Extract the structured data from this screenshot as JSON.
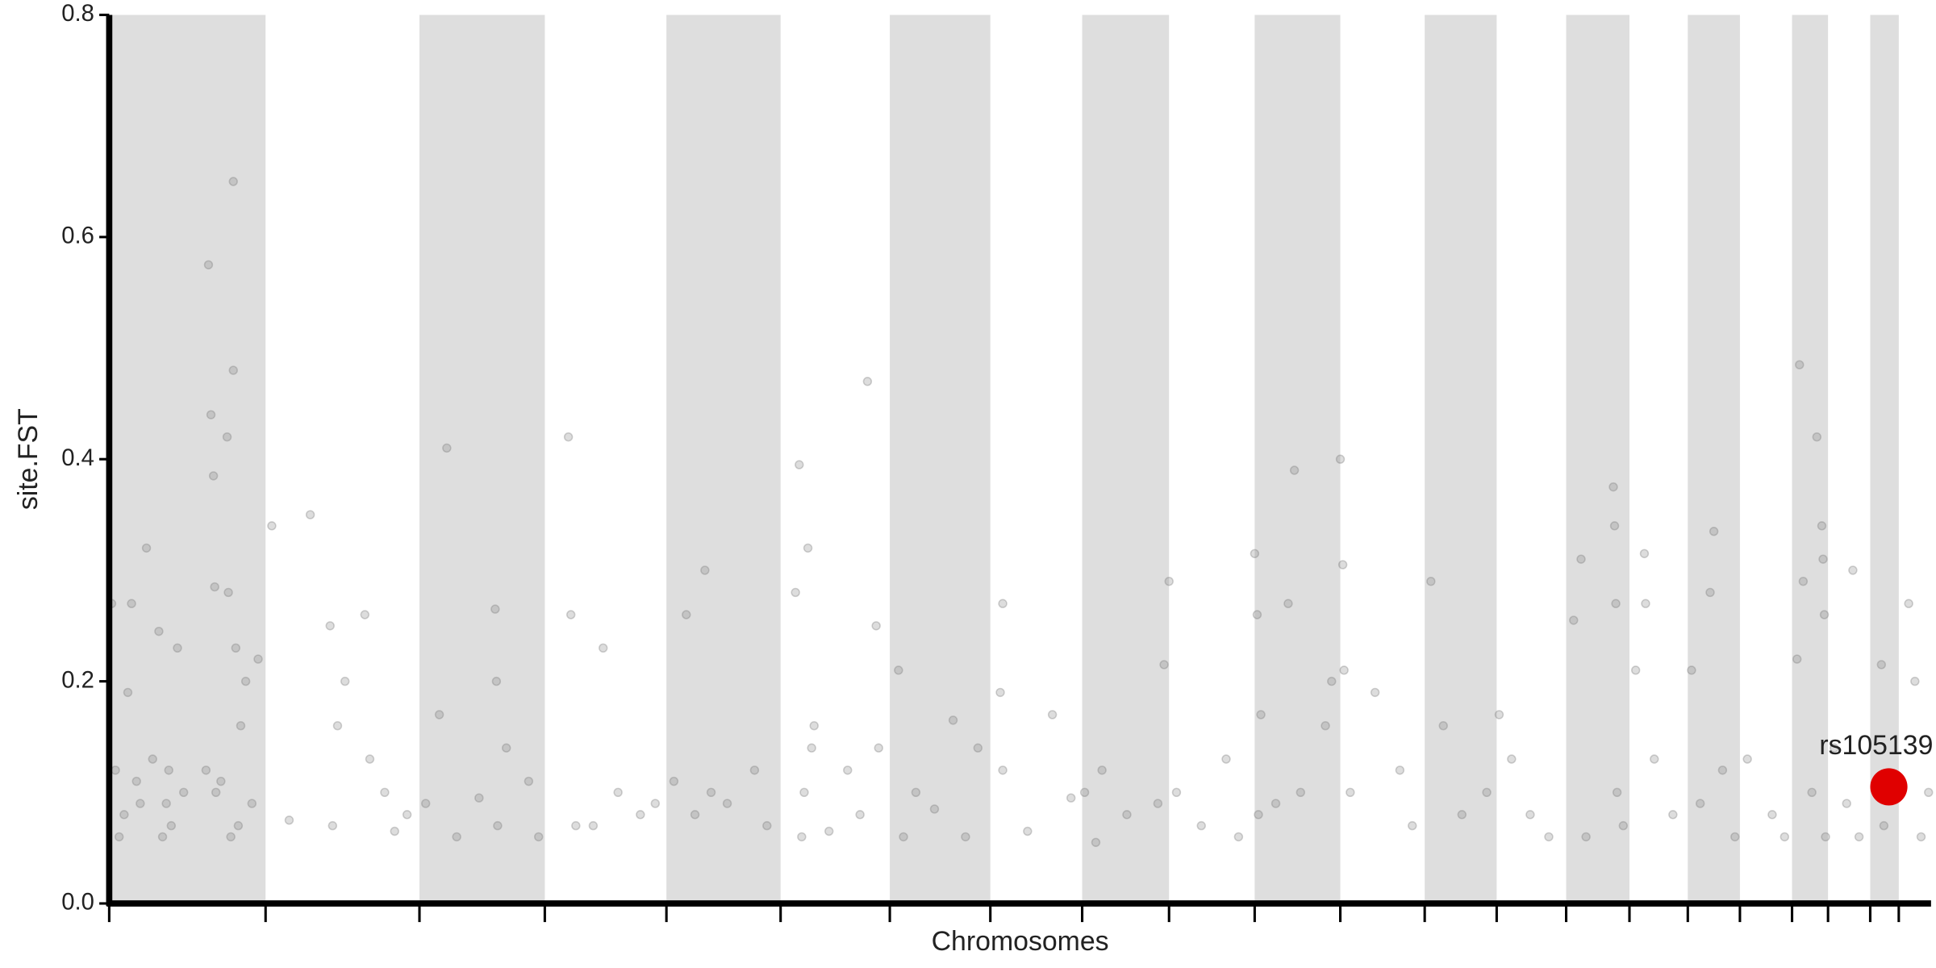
{
  "chart_data": {
    "type": "scatter",
    "xlabel": "Chromosomes",
    "ylabel": "site.FST",
    "xlim": [
      0,
      1468
    ],
    "ylim": [
      0,
      0.8
    ],
    "yticks": [
      {
        "value": 0,
        "label": "0.0"
      },
      {
        "value": 0.2,
        "label": "0.2"
      },
      {
        "value": 0.4,
        "label": "0.4"
      },
      {
        "value": 0.6,
        "label": "0.6"
      },
      {
        "value": 0.8,
        "label": "0.8"
      }
    ],
    "xticks": [
      0,
      126,
      250,
      351,
      449,
      541,
      629,
      710,
      784,
      854,
      923,
      992,
      1060,
      1118,
      1174,
      1225,
      1272,
      1314,
      1356,
      1385,
      1419,
      1442
    ],
    "band_color": "#dedede",
    "color": "#777777",
    "x": [
      2,
      5,
      8,
      12,
      15,
      18,
      22,
      25,
      30,
      35,
      40,
      43,
      46,
      48,
      50,
      55,
      60,
      78,
      80,
      82,
      84,
      85,
      86,
      90,
      95,
      96,
      98,
      100,
      100,
      102,
      104,
      106,
      110,
      115,
      120,
      131,
      145,
      162,
      178,
      180,
      184,
      190,
      206,
      210,
      222,
      230,
      240,
      255,
      266,
      272,
      280,
      298,
      311,
      312,
      313,
      320,
      338,
      346,
      370,
      372,
      376,
      390,
      398,
      410,
      428,
      440,
      455,
      465,
      472,
      480,
      485,
      498,
      520,
      530,
      553,
      556,
      558,
      560,
      563,
      566,
      568,
      580,
      595,
      605,
      611,
      618,
      620,
      636,
      640,
      650,
      665,
      680,
      690,
      700,
      718,
      720,
      720,
      740,
      760,
      775,
      786,
      795,
      800,
      820,
      845,
      850,
      854,
      860,
      880,
      900,
      910,
      923,
      925,
      926,
      928,
      940,
      950,
      955,
      960,
      980,
      985,
      992,
      994,
      995,
      1000,
      1020,
      1040,
      1050,
      1065,
      1075,
      1090,
      1110,
      1120,
      1130,
      1145,
      1160,
      1180,
      1186,
      1190,
      1212,
      1213,
      1214,
      1215,
      1220,
      1230,
      1237,
      1238,
      1245,
      1260,
      1275,
      1282,
      1290,
      1293,
      1300,
      1310,
      1320,
      1340,
      1350,
      1360,
      1362,
      1365,
      1372,
      1376,
      1380,
      1381,
      1382,
      1383,
      1390,
      1400,
      1405,
      1410,
      1428,
      1430,
      1450,
      1455,
      1460,
      1466
    ],
    "values": [
      0.27,
      0.12,
      0.06,
      0.08,
      0.19,
      0.27,
      0.11,
      0.09,
      0.32,
      0.13,
      0.245,
      0.06,
      0.09,
      0.12,
      0.07,
      0.23,
      0.1,
      0.12,
      0.575,
      0.44,
      0.385,
      0.285,
      0.1,
      0.11,
      0.42,
      0.28,
      0.06,
      0.48,
      0.65,
      0.23,
      0.07,
      0.16,
      0.2,
      0.09,
      0.22,
      0.34,
      0.075,
      0.35,
      0.25,
      0.07,
      0.16,
      0.2,
      0.26,
      0.13,
      0.1,
      0.065,
      0.08,
      0.09,
      0.17,
      0.41,
      0.06,
      0.095,
      0.265,
      0.2,
      0.07,
      0.14,
      0.11,
      0.06,
      0.42,
      0.26,
      0.07,
      0.07,
      0.23,
      0.1,
      0.08,
      0.09,
      0.11,
      0.26,
      0.08,
      0.3,
      0.1,
      0.09,
      0.12,
      0.07,
      0.28,
      0.395,
      0.06,
      0.1,
      0.32,
      0.14,
      0.16,
      0.065,
      0.12,
      0.08,
      0.47,
      0.25,
      0.14,
      0.21,
      0.06,
      0.1,
      0.085,
      0.165,
      0.06,
      0.14,
      0.19,
      0.27,
      0.12,
      0.065,
      0.17,
      0.095,
      0.1,
      0.055,
      0.12,
      0.08,
      0.09,
      0.215,
      0.29,
      0.1,
      0.07,
      0.13,
      0.06,
      0.315,
      0.26,
      0.08,
      0.17,
      0.09,
      0.27,
      0.39,
      0.1,
      0.16,
      0.2,
      0.4,
      0.305,
      0.21,
      0.1,
      0.19,
      0.12,
      0.07,
      0.29,
      0.16,
      0.08,
      0.1,
      0.17,
      0.13,
      0.08,
      0.06,
      0.255,
      0.31,
      0.06,
      0.375,
      0.34,
      0.27,
      0.1,
      0.07,
      0.21,
      0.315,
      0.27,
      0.13,
      0.08,
      0.21,
      0.09,
      0.28,
      0.335,
      0.12,
      0.06,
      0.13,
      0.08,
      0.06,
      0.22,
      0.485,
      0.29,
      0.1,
      0.42,
      0.34,
      0.31,
      0.26,
      0.06,
      0.14,
      0.09,
      0.3,
      0.06,
      0.215,
      0.07,
      0.27,
      0.2,
      0.06,
      0.1
    ],
    "highlight": {
      "label": "rs105139",
      "x": 1434,
      "value": 0.105,
      "color": "#e00000"
    }
  }
}
